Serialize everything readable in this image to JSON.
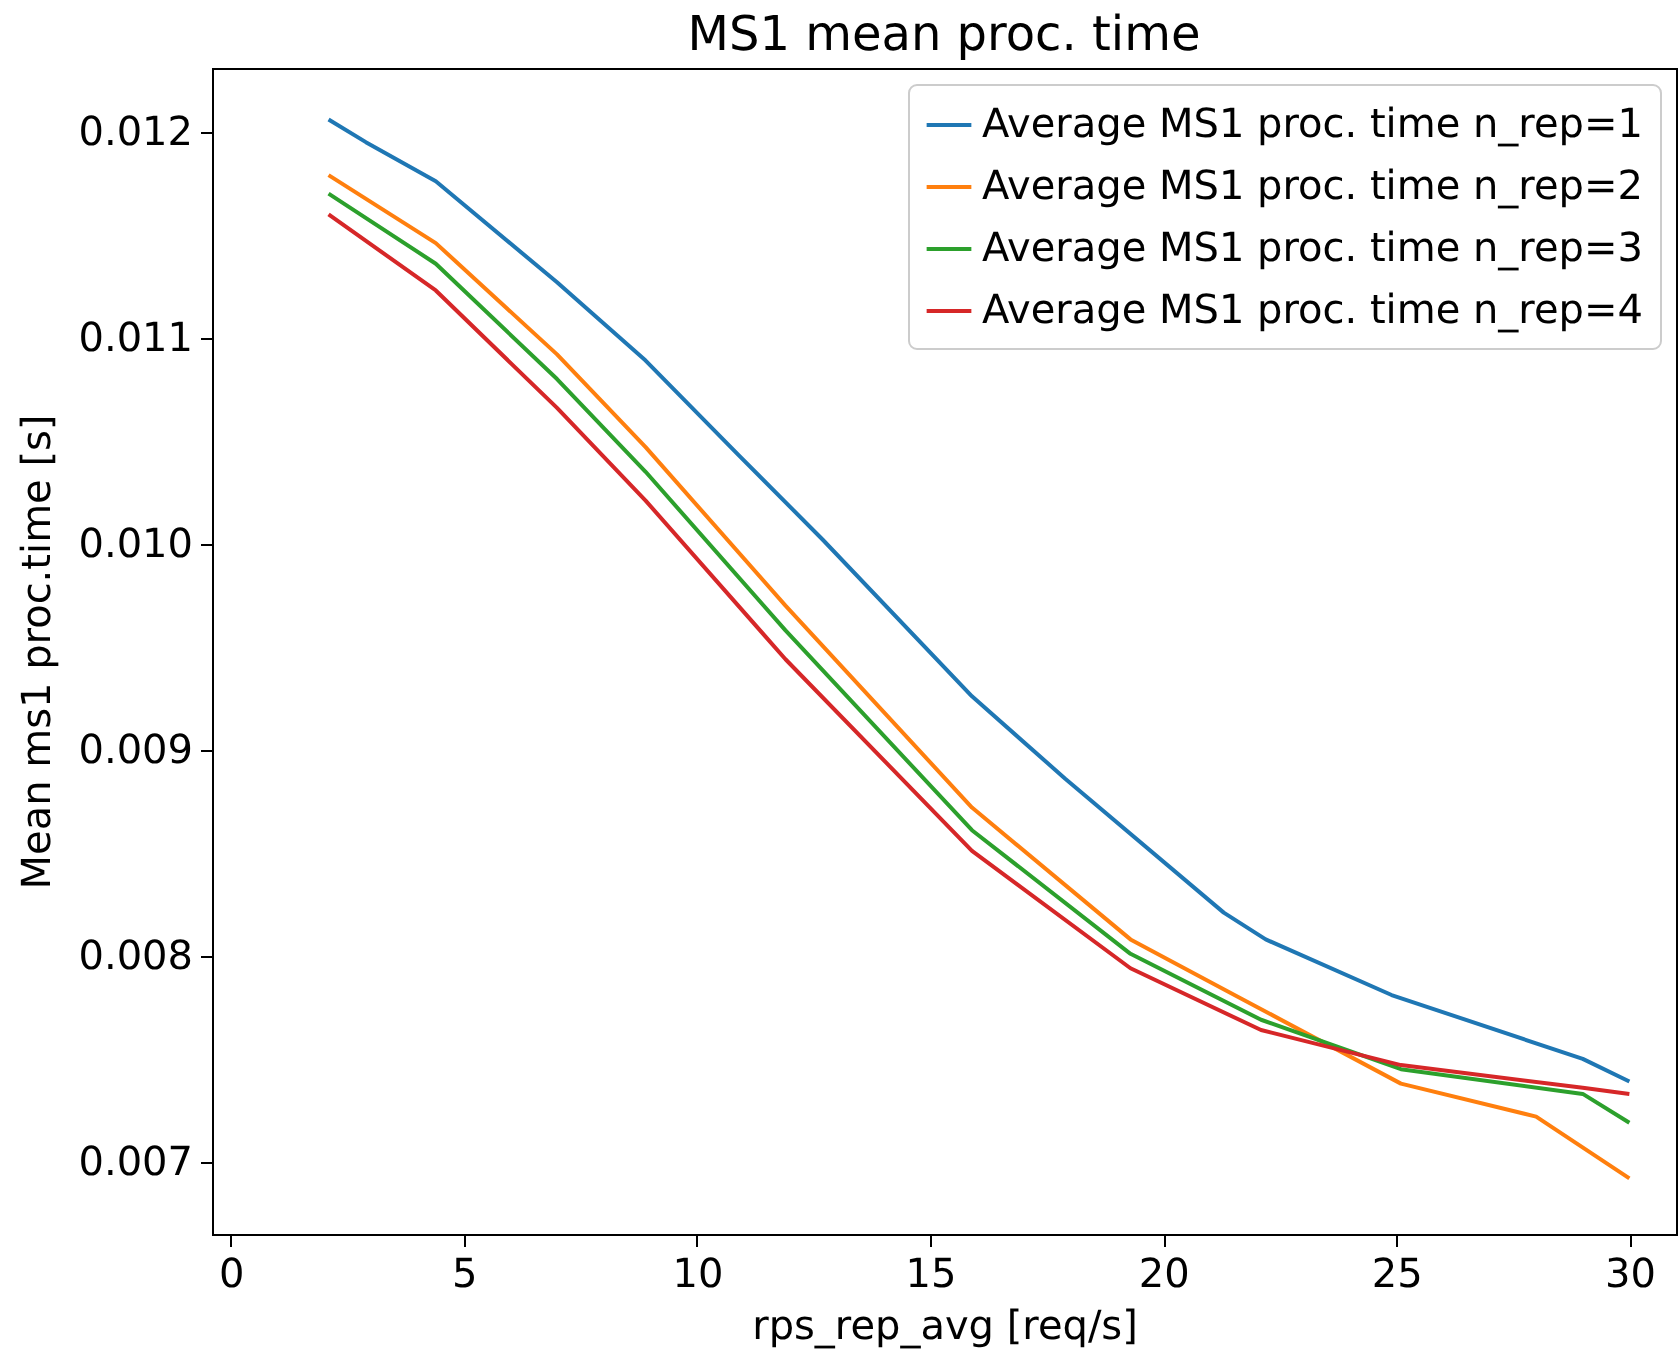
{
  "chart_data": {
    "type": "line",
    "title": "MS1 mean proc. time",
    "xlabel": "rps_rep_avg [req/s]",
    "ylabel": "Mean ms1 proc.time [s]",
    "xlim": [
      -0.4,
      31
    ],
    "xticks": [
      0,
      5,
      10,
      15,
      20,
      25,
      30
    ],
    "ylim": [
      0.00665,
      0.01231
    ],
    "yticks": [
      0.007,
      0.008,
      0.009,
      {
        "value": 0.01,
        "label": "0.010"
      },
      0.011,
      0.012
    ],
    "grid": false,
    "legend": "top right",
    "series": [
      {
        "name": "Average MS1 proc. time n_rep=1",
        "color": "#1f77b4",
        "x": [
          2.1,
          2.9,
          4.4,
          7,
          8.9,
          10.9,
          12.7,
          15.9,
          17.9,
          21.3,
          22.2,
          24.9,
          29,
          30
        ],
        "values": [
          0.01206,
          0.01195,
          0.01176,
          0.01127,
          0.01089,
          0.01043,
          0.01002,
          0.00926,
          0.00886,
          0.00821,
          0.00808,
          0.00781,
          0.0075,
          0.00739
        ]
      },
      {
        "name": "Average MS1 proc. time n_rep=2",
        "color": "#ff7f0e",
        "x": [
          2.1,
          4.4,
          7,
          8.9,
          11.9,
          15.9,
          19.3,
          21.7,
          25.1,
          28,
          30
        ],
        "values": [
          0.01179,
          0.01146,
          0.01092,
          0.01047,
          0.0097,
          0.00872,
          0.00808,
          0.00779,
          0.00738,
          0.00722,
          0.00692
        ]
      },
      {
        "name": "Average MS1 proc. time n_rep=3",
        "color": "#2ca02c",
        "x": [
          2.1,
          4.4,
          7,
          8.9,
          11.9,
          15.9,
          19.3,
          22.1,
          25.1,
          29,
          30
        ],
        "values": [
          0.0117,
          0.01136,
          0.0108,
          0.01035,
          0.00958,
          0.00861,
          0.00801,
          0.00769,
          0.00745,
          0.00733,
          0.00719
        ]
      },
      {
        "name": "Average MS1 proc. time n_rep=4",
        "color": "#d62728",
        "x": [
          2.1,
          4.4,
          7,
          8.9,
          11.9,
          15.9,
          19.3,
          22.1,
          25.1,
          29,
          30
        ],
        "values": [
          0.0116,
          0.01123,
          0.01066,
          0.01021,
          0.00944,
          0.00851,
          0.00794,
          0.00764,
          0.00747,
          0.00736,
          0.00733
        ]
      }
    ]
  }
}
